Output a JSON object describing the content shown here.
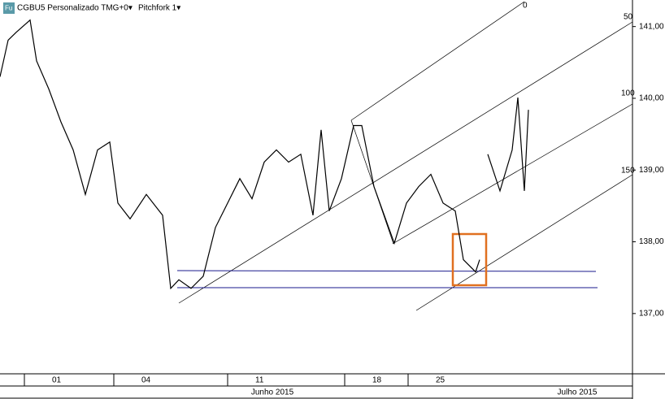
{
  "chart_data": {
    "type": "line",
    "toolbar": {
      "symbol": "CGBU5 Personalizado TMG+0▾",
      "tool": "Pitchfork 1▾",
      "icon": "Fu"
    },
    "x": [
      0,
      2,
      4,
      7.4,
      9,
      12,
      15,
      18,
      21,
      24,
      27,
      29,
      32,
      36,
      40,
      42,
      44,
      47,
      50,
      53,
      56,
      59,
      62,
      65,
      68,
      71,
      74,
      77,
      79,
      81,
      84,
      87,
      89,
      92,
      97,
      100,
      103,
      106,
      109,
      112,
      114,
      117,
      118,
      118.2,
      120,
      123,
      126,
      127.4,
      129,
      130
    ],
    "series": [
      {
        "name": "CGBU5",
        "color": "#000000",
        "values": [
          140.3,
          140.81,
          140.92,
          141.09,
          140.52,
          140.13,
          139.67,
          139.28,
          138.66,
          139.28,
          139.39,
          138.54,
          138.32,
          138.66,
          138.37,
          137.35,
          137.47,
          137.35,
          137.52,
          138.2,
          138.54,
          138.88,
          138.6,
          139.11,
          139.28,
          139.11,
          139.22,
          138.37,
          139.56,
          138.43,
          138.88,
          139.62,
          139.62,
          138.77,
          137.98,
          138.54,
          138.77,
          138.94,
          138.54,
          138.43,
          137.75,
          137.58,
          137.75,
          null,
          139.22,
          138.71,
          139.28,
          140.01,
          138.71,
          139.84
        ]
      }
    ],
    "xlim": [
      0,
      155.6
    ],
    "ylim": [
      136.16,
      141.37
    ],
    "yticks": [
      {
        "value": 141,
        "label": "141,00"
      },
      {
        "value": 140,
        "label": "140,00"
      },
      {
        "value": 139,
        "label": "139,00"
      },
      {
        "value": 138,
        "label": "138,00"
      },
      {
        "value": 137,
        "label": "137,00"
      }
    ],
    "xticks": [
      {
        "value": 13.6,
        "label": "01"
      },
      {
        "value": 35.6,
        "label": "04"
      },
      {
        "value": 63.6,
        "label": "11"
      },
      {
        "value": 92.4,
        "label": "18"
      },
      {
        "value": 108,
        "label": "25"
      }
    ],
    "months": [
      {
        "value": 67,
        "label": "Junho 2015"
      },
      {
        "value": 142,
        "label": "Julho 2015"
      }
    ],
    "pitchfork_labels": [
      "0",
      "50",
      "100",
      "150"
    ]
  }
}
